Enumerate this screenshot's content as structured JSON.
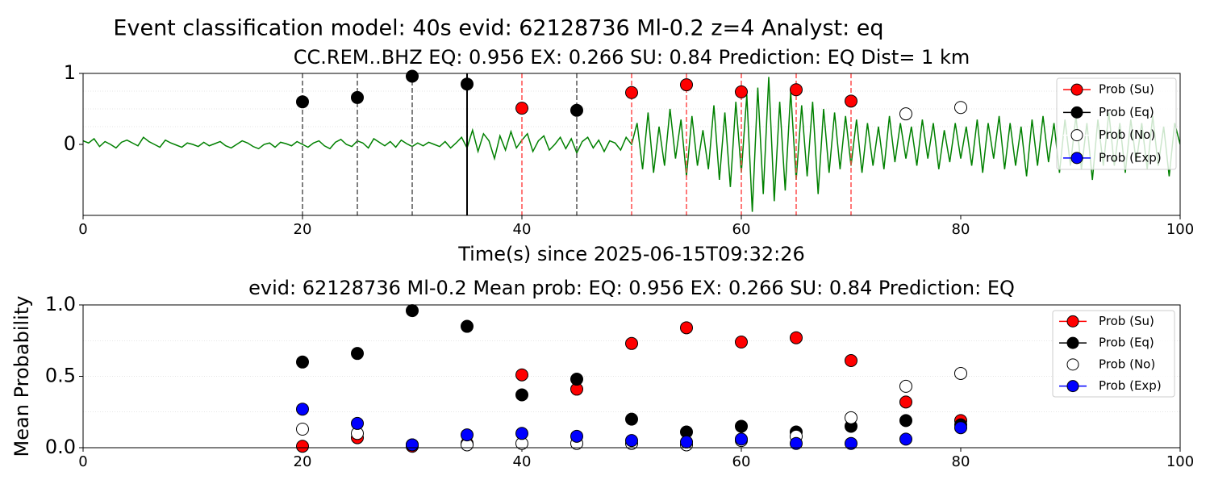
{
  "title": "Event classification model: 40s evid: 62128736 Ml-0.2 z=4 Analyst: eq",
  "chart_data": [
    {
      "type": "line",
      "title": "CC.REM..BHZ   EQ: 0.956  EX: 0.266  SU: 0.84   Prediction: EQ    Dist= 1 km",
      "xlabel": "Time(s) since 2025-06-15T09:32:26",
      "xlim": [
        0,
        100
      ],
      "xticks": [
        0,
        20,
        40,
        60,
        80,
        100
      ],
      "ylim": [
        -1,
        1
      ],
      "yticks": [
        0,
        1
      ],
      "ygrid": [
        0.25,
        0.5,
        0.75,
        1
      ],
      "series": [
        {
          "color": "#008000",
          "x": [
            0,
            0.5,
            1,
            1.5,
            2,
            2.5,
            3,
            3.5,
            4,
            4.5,
            5,
            5.5,
            6,
            6.5,
            7,
            7.5,
            8,
            8.5,
            9,
            9.5,
            10,
            10.5,
            11,
            11.5,
            12,
            12.5,
            13,
            13.5,
            14,
            14.5,
            15,
            15.5,
            16,
            16.5,
            17,
            17.5,
            18,
            18.5,
            19,
            19.5,
            20,
            20.5,
            21,
            21.5,
            22,
            22.5,
            23,
            23.5,
            24,
            24.5,
            25,
            25.5,
            26,
            26.5,
            27,
            27.5,
            28,
            28.5,
            29,
            29.5,
            30,
            30.5,
            31,
            31.5,
            32,
            32.5,
            33,
            33.5,
            34,
            34.5,
            35,
            35.5,
            36,
            36.5,
            37,
            37.5,
            38,
            38.5,
            39,
            39.5,
            40,
            40.5,
            41,
            41.5,
            42,
            42.5,
            43,
            43.5,
            44,
            44.5,
            45,
            45.5,
            46,
            46.5,
            47,
            47.5,
            48,
            48.5,
            49,
            49.5,
            50,
            50.5,
            51,
            51.5,
            52,
            52.5,
            53,
            53.5,
            54,
            54.5,
            55,
            55.5,
            56,
            56.5,
            57,
            57.5,
            58,
            58.5,
            59,
            59.5,
            60,
            60.5,
            61,
            61.5,
            62,
            62.5,
            63,
            63.5,
            64,
            64.5,
            65,
            65.5,
            66,
            66.5,
            67,
            67.5,
            68,
            68.5,
            69,
            69.5,
            70,
            70.5,
            71,
            71.5,
            72,
            72.5,
            73,
            73.5,
            74,
            74.5,
            75,
            75.5,
            76,
            76.5,
            77,
            77.5,
            78,
            78.5,
            79,
            79.5,
            80,
            80.5,
            81,
            81.5,
            82,
            82.5,
            83,
            83.5,
            84,
            84.5,
            85,
            85.5,
            86,
            86.5,
            87,
            87.5,
            88,
            88.5,
            89,
            89.5,
            90,
            90.5,
            91,
            91.5,
            92,
            92.5,
            93,
            93.5,
            94,
            94.5,
            95,
            95.5,
            96,
            96.5,
            97,
            97.5,
            98,
            98.5,
            99,
            99.5,
            100
          ],
          "values": [
            0.05,
            0.02,
            0.08,
            -0.03,
            0.04,
            0.0,
            -0.05,
            0.03,
            0.06,
            0.02,
            -0.02,
            0.1,
            0.04,
            0.0,
            -0.04,
            0.06,
            0.02,
            -0.01,
            -0.04,
            0.02,
            0.0,
            -0.03,
            0.03,
            -0.02,
            0.01,
            0.04,
            -0.02,
            -0.05,
            0.0,
            0.05,
            0.02,
            -0.03,
            -0.06,
            0.0,
            0.02,
            -0.04,
            0.03,
            0.01,
            -0.02,
            0.04,
            0.0,
            -0.04,
            0.02,
            0.05,
            -0.02,
            -0.06,
            0.03,
            0.07,
            0.0,
            -0.03,
            0.05,
            0.02,
            -0.05,
            0.08,
            0.03,
            -0.02,
            0.04,
            -0.04,
            0.06,
            0.01,
            -0.03,
            0.02,
            -0.02,
            0.03,
            0.0,
            -0.03,
            0.04,
            -0.05,
            0.02,
            0.1,
            -0.05,
            0.2,
            -0.1,
            0.15,
            0.05,
            -0.2,
            0.12,
            -0.08,
            0.18,
            -0.05,
            0.06,
            0.15,
            -0.1,
            0.05,
            0.12,
            -0.08,
            0.0,
            0.1,
            -0.06,
            0.08,
            -0.12,
            0.04,
            0.1,
            -0.05,
            0.06,
            -0.1,
            0.05,
            0.02,
            -0.08,
            0.1,
            0.0,
            0.3,
            -0.35,
            0.45,
            -0.4,
            0.25,
            -0.3,
            0.5,
            -0.2,
            0.35,
            -0.45,
            0.4,
            -0.3,
            0.2,
            -0.35,
            0.55,
            -0.5,
            0.45,
            -0.6,
            0.6,
            -0.4,
            0.7,
            -0.95,
            0.8,
            -0.7,
            0.95,
            -0.8,
            0.6,
            -0.65,
            0.75,
            -0.5,
            0.55,
            -0.45,
            0.6,
            -0.7,
            0.5,
            -0.4,
            0.45,
            -0.35,
            0.4,
            -0.3,
            0.35,
            -0.4,
            0.3,
            -0.3,
            0.25,
            -0.35,
            0.4,
            -0.25,
            0.3,
            -0.2,
            0.25,
            -0.3,
            0.35,
            -0.2,
            0.3,
            -0.35,
            0.2,
            -0.25,
            0.3,
            -0.2,
            0.25,
            -0.3,
            0.35,
            -0.4,
            0.3,
            -0.2,
            0.4,
            -0.35,
            0.3,
            -0.3,
            0.25,
            -0.45,
            0.35,
            -0.3,
            0.4,
            -0.25,
            0.3,
            -0.4,
            0.35,
            -0.3,
            0.4,
            -0.35,
            0.3,
            -0.5,
            0.35,
            -0.3,
            0.45,
            -0.3,
            0.3,
            -0.4,
            0.35,
            -0.25,
            0.3,
            -0.35,
            0.4,
            -0.3,
            0.25,
            -0.45,
            0.3,
            0.0
          ]
        }
      ],
      "vlines": [
        {
          "x": 20,
          "color": "#555555",
          "style": "dashed"
        },
        {
          "x": 25,
          "color": "#555555",
          "style": "dashed"
        },
        {
          "x": 30,
          "color": "#555555",
          "style": "dashed"
        },
        {
          "x": 35,
          "color": "#000000",
          "style": "solid"
        },
        {
          "x": 40,
          "color": "#ff4d4d",
          "style": "dashed"
        },
        {
          "x": 45,
          "color": "#555555",
          "style": "dashed"
        },
        {
          "x": 50,
          "color": "#ff4d4d",
          "style": "dashed"
        },
        {
          "x": 55,
          "color": "#ff4d4d",
          "style": "dashed"
        },
        {
          "x": 60,
          "color": "#ff4d4d",
          "style": "dashed"
        },
        {
          "x": 65,
          "color": "#ff4d4d",
          "style": "dashed"
        },
        {
          "x": 70,
          "color": "#ff4d4d",
          "style": "dashed"
        }
      ],
      "markers": {
        "x": [
          20,
          25,
          30,
          35,
          40,
          45,
          50,
          55,
          60,
          65,
          70,
          75,
          80
        ],
        "values": [
          0.6,
          0.66,
          0.96,
          0.85,
          0.51,
          0.48,
          0.73,
          0.84,
          0.74,
          0.77,
          0.61,
          0.43,
          0.52
        ],
        "colors": [
          "#000000",
          "#000000",
          "#000000",
          "#000000",
          "#ff0000",
          "#000000",
          "#ff0000",
          "#ff0000",
          "#ff0000",
          "#ff0000",
          "#ff0000",
          "#ffffff",
          "#ffffff"
        ]
      },
      "legend": [
        {
          "name": "Prob (Su)",
          "color": "#ff0000"
        },
        {
          "name": "Prob (Eq)",
          "color": "#000000"
        },
        {
          "name": "Prob (No)",
          "color": "#ffffff"
        },
        {
          "name": "Prob (Exp)",
          "color": "#0000ff"
        }
      ]
    },
    {
      "type": "scatter",
      "title": "evid: 62128736  Ml-0.2   Mean prob:   EQ: 0.956  EX: 0.266  SU: 0.84   Prediction: EQ",
      "ylabel": "Mean Probability",
      "xlim": [
        0,
        100
      ],
      "xticks": [
        0,
        20,
        40,
        60,
        80,
        100
      ],
      "ylim": [
        0,
        1
      ],
      "yticks": [
        {
          "value": 0,
          "label": "0.0"
        },
        {
          "value": 0.5,
          "label": "0.5"
        },
        {
          "value": 1,
          "label": "1.0"
        }
      ],
      "ygrid": [
        0.25,
        0.5,
        0.75,
        1
      ],
      "x": [
        20,
        25,
        30,
        35,
        40,
        45,
        50,
        55,
        60,
        65,
        70,
        75,
        80
      ],
      "series": [
        {
          "name": "Prob (Su)",
          "color": "#ff0000",
          "values": [
            0.01,
            0.07,
            0.01,
            0.03,
            0.51,
            0.41,
            0.73,
            0.84,
            0.74,
            0.77,
            0.61,
            0.32,
            0.19
          ]
        },
        {
          "name": "Prob (Eq)",
          "color": "#000000",
          "values": [
            0.6,
            0.66,
            0.96,
            0.85,
            0.37,
            0.48,
            0.2,
            0.11,
            0.15,
            0.11,
            0.15,
            0.19,
            0.16
          ]
        },
        {
          "name": "Prob (No)",
          "color": "#ffffff",
          "values": [
            0.13,
            0.1,
            0.02,
            0.02,
            0.03,
            0.03,
            0.03,
            0.02,
            0.05,
            0.08,
            0.21,
            0.43,
            0.52
          ]
        },
        {
          "name": "Prob (Exp)",
          "color": "#0000ff",
          "values": [
            0.27,
            0.17,
            0.02,
            0.09,
            0.1,
            0.08,
            0.05,
            0.04,
            0.06,
            0.03,
            0.03,
            0.06,
            0.14
          ]
        }
      ]
    }
  ]
}
